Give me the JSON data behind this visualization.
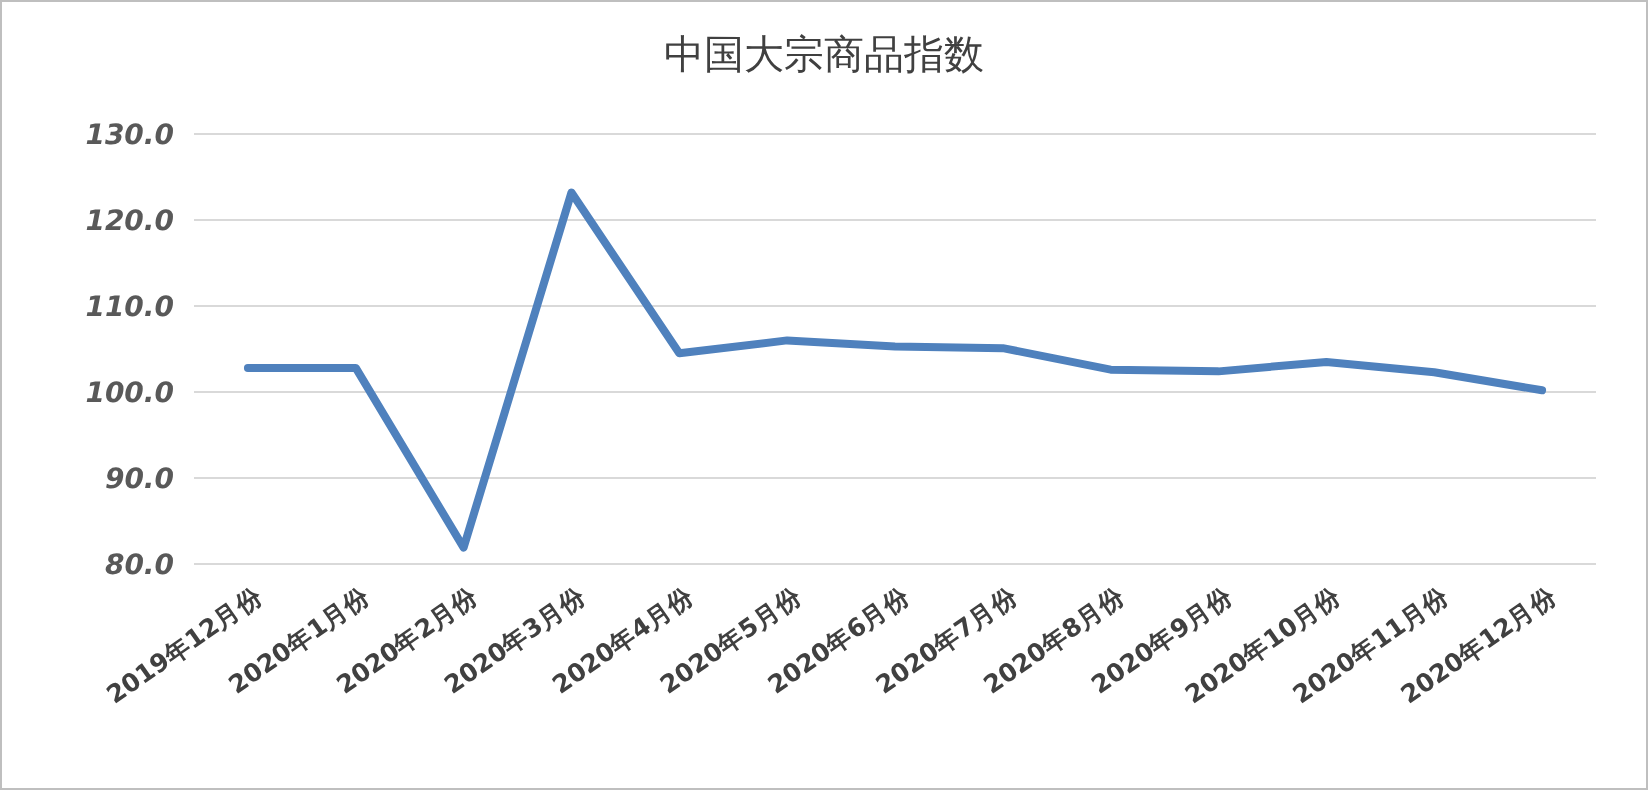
{
  "chart_data": {
    "type": "line",
    "title": "中国大宗商品指数",
    "categories": [
      "2019年12月份",
      "2020年1月份",
      "2020年2月份",
      "2020年3月份",
      "2020年4月份",
      "2020年5月份",
      "2020年6月份",
      "2020年7月份",
      "2020年8月份",
      "2020年9月份",
      "2020年10月份",
      "2020年11月份",
      "2020年12月份"
    ],
    "series": [
      {
        "color": "#4f81bd",
        "values": [
          102.8,
          102.8,
          81.9,
          123.2,
          104.5,
          106.0,
          105.3,
          105.1,
          102.6,
          102.4,
          103.5,
          102.3,
          100.2
        ]
      }
    ],
    "ylim": [
      80,
      130
    ],
    "yticks": [
      {
        "value": 80,
        "label": "80.0"
      },
      {
        "value": 90,
        "label": "90.0"
      },
      {
        "value": 100,
        "label": "100.0"
      },
      {
        "value": 110,
        "label": "110.0"
      },
      {
        "value": 120,
        "label": "120.0"
      },
      {
        "value": 130,
        "label": "130.0"
      }
    ],
    "grid": "y",
    "marker": "none",
    "line_style": "solid"
  }
}
